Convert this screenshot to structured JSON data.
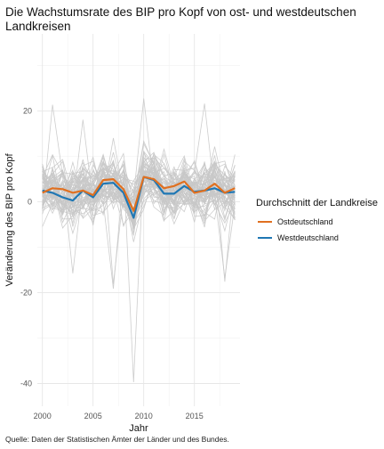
{
  "chart_data": {
    "type": "line",
    "title": "Die Wachstumsrate des BIP pro Kopf von ost- und westdeutschen Landkreisen",
    "xlabel": "Jahr",
    "ylabel": "Veränderung des BIP pro Kopf",
    "xlim": [
      1999.5,
      2019.5
    ],
    "ylim": [
      -45,
      37
    ],
    "x_ticks": [
      2000,
      2005,
      2010,
      2015
    ],
    "y_ticks": [
      -40,
      -20,
      0,
      20
    ],
    "grid": true,
    "legend": {
      "title": "Durchschnitt der Landkreise",
      "placement": "right"
    },
    "x": [
      2000,
      2001,
      2002,
      2003,
      2004,
      2005,
      2006,
      2007,
      2008,
      2009,
      2010,
      2011,
      2012,
      2013,
      2014,
      2015,
      2016,
      2017,
      2018,
      2019
    ],
    "series": [
      {
        "name": "Ostdeutschland",
        "color": "#e07020",
        "values": [
          2.0,
          3.0,
          2.8,
          2.0,
          2.5,
          1.5,
          4.8,
          5.0,
          2.8,
          -2.0,
          5.5,
          5.0,
          3.0,
          3.5,
          4.5,
          2.0,
          2.5,
          4.0,
          2.0,
          3.0
        ]
      },
      {
        "name": "Westdeutschland",
        "color": "#1f77b4",
        "values": [
          2.5,
          2.0,
          1.0,
          0.3,
          2.5,
          1.0,
          4.0,
          4.2,
          2.0,
          -3.5,
          5.5,
          4.8,
          1.8,
          1.8,
          3.5,
          2.2,
          2.5,
          3.0,
          2.0,
          2.2
        ]
      }
    ],
    "background_lines_color": "#c8c8c8",
    "note": "Quelle: Daten der Statistischen Ämter der Länder und des Bundes."
  }
}
